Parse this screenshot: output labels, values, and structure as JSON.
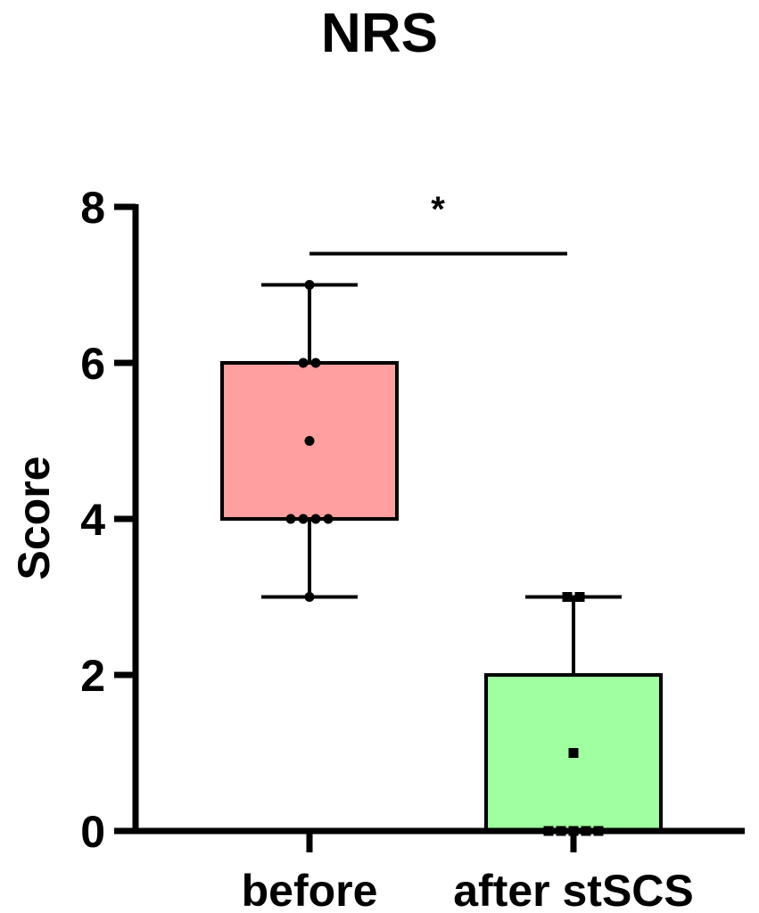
{
  "chart_data": {
    "type": "box",
    "title": "NRS",
    "xlabel": "",
    "ylabel": "Score",
    "ylim": [
      0,
      8
    ],
    "yticks": [
      0,
      2,
      4,
      6,
      8
    ],
    "categories": [
      "before",
      "after stSCS"
    ],
    "boxes": [
      {
        "category": "before",
        "min": 3,
        "q1": 4,
        "median": 4,
        "q3": 6,
        "max": 7,
        "color": "#ff9f9f",
        "points": [
          7,
          6,
          6,
          5,
          4,
          4,
          4,
          4,
          3
        ],
        "marker": "circle"
      },
      {
        "category": "after stSCS",
        "min": 0,
        "q1": 0,
        "median": 0,
        "q3": 2,
        "max": 3,
        "color": "#a0ff9f",
        "points": [
          3,
          3,
          1,
          0,
          0,
          0,
          0,
          0
        ],
        "marker": "square"
      }
    ],
    "significance": {
      "between": [
        "before",
        "after stSCS"
      ],
      "label": "*"
    }
  }
}
